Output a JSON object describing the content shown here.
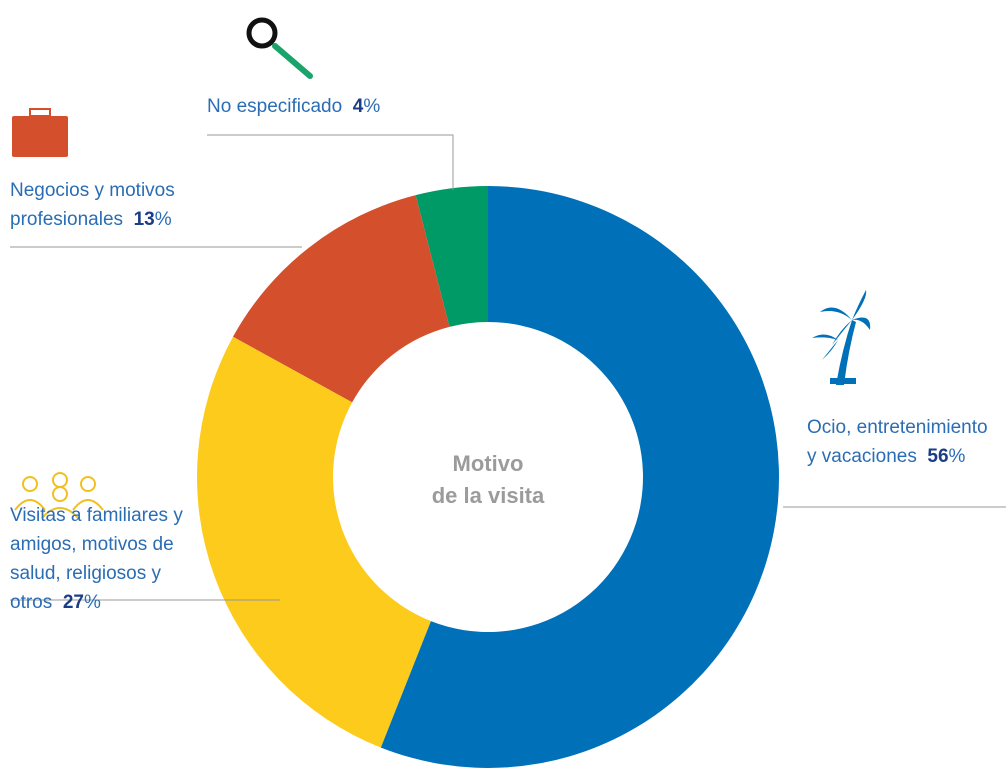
{
  "chart_data": {
    "type": "donut",
    "center_label": [
      "Motivo",
      "de la visita"
    ],
    "categories": [
      "Ocio, entretenimiento y vacaciones",
      "Visitas a familiares y amigos, motivos de salud, religiosos y otros",
      "Negocios y motivos profesionales",
      "No especificado"
    ],
    "values": [
      56,
      27,
      13,
      4
    ],
    "value_labels": [
      "56%",
      "27%",
      "13%",
      "4%"
    ],
    "colors": [
      "#0071b9",
      "#fccb1b",
      "#d4502c",
      "#009a66"
    ]
  }
}
